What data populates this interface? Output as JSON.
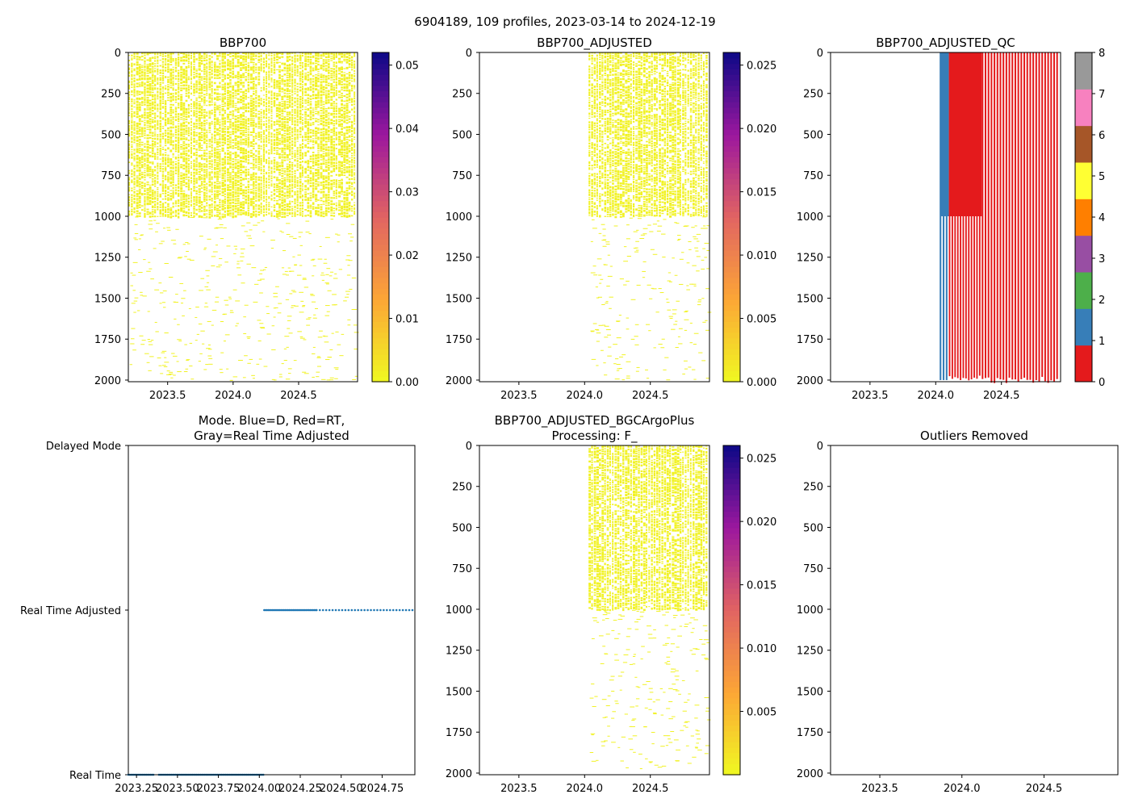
{
  "figure_title": "6904189, 109 profiles, 2023-03-14 to 2024-12-19",
  "chart_data": [
    {
      "id": "bbp700",
      "type": "heatmap",
      "title": "BBP700",
      "x_range": [
        2023.2,
        2024.95
      ],
      "y_range": [
        0,
        2010
      ],
      "y_inverted": true,
      "x_ticks": [
        2023.5,
        2024.0,
        2024.5
      ],
      "x_tick_labels": [
        "2023.5",
        "2024.0",
        "2024.5"
      ],
      "y_ticks": [
        0,
        250,
        500,
        750,
        1000,
        1250,
        1500,
        1750,
        2000
      ],
      "y_tick_labels": [
        "0",
        "250",
        "500",
        "750",
        "1000",
        "1250",
        "1500",
        "1750",
        "2000"
      ],
      "profile_time_range": [
        2023.2,
        2024.94
      ],
      "dense_depth_max": 1000,
      "sparse_depth_max": 2000,
      "value_range": [
        0.0,
        0.052
      ],
      "colormap": "plasma_r",
      "colorbar_ticks": [
        0.0,
        0.01,
        0.02,
        0.03,
        0.04,
        0.05
      ],
      "colorbar_labels": [
        "0.00",
        "0.01",
        "0.02",
        "0.03",
        "0.04",
        "0.05"
      ]
    },
    {
      "id": "bbp700_adjusted",
      "type": "heatmap",
      "title": "BBP700_ADJUSTED",
      "x_range": [
        2023.2,
        2024.95
      ],
      "y_range": [
        0,
        2010
      ],
      "y_inverted": true,
      "x_ticks": [
        2023.5,
        2024.0,
        2024.5
      ],
      "x_tick_labels": [
        "2023.5",
        "2024.0",
        "2024.5"
      ],
      "y_ticks": [
        0,
        250,
        500,
        750,
        1000,
        1250,
        1500,
        1750,
        2000
      ],
      "y_tick_labels": [
        "0",
        "250",
        "500",
        "750",
        "1000",
        "1250",
        "1500",
        "1750",
        "2000"
      ],
      "profile_time_range": [
        2024.03,
        2024.94
      ],
      "dense_depth_max": 1000,
      "sparse_depth_max": 2000,
      "value_range": [
        0.0,
        0.026
      ],
      "colormap": "plasma_r",
      "colorbar_ticks": [
        0.0,
        0.005,
        0.01,
        0.015,
        0.02,
        0.025
      ],
      "colorbar_labels": [
        "0.000",
        "0.005",
        "0.010",
        "0.015",
        "0.020",
        "0.025"
      ]
    },
    {
      "id": "bbp700_adjusted_qc",
      "type": "heatmap",
      "title": "BBP700_ADJUSTED_QC",
      "x_range": [
        2023.2,
        2024.95
      ],
      "y_range": [
        0,
        2010
      ],
      "y_inverted": true,
      "x_ticks": [
        2023.5,
        2024.0,
        2024.5
      ],
      "x_tick_labels": [
        "2023.5",
        "2024.0",
        "2024.5"
      ],
      "y_ticks": [
        0,
        250,
        500,
        750,
        1000,
        1250,
        1500,
        1750,
        2000
      ],
      "y_tick_labels": [
        "0",
        "250",
        "500",
        "750",
        "1000",
        "1250",
        "1500",
        "1750",
        "2000"
      ],
      "qc_blue_band": [
        2024.03,
        2024.1
      ],
      "qc_red_solid_band": [
        2024.1,
        2024.35
      ],
      "qc_red_striped_range": [
        2024.35,
        2024.94
      ],
      "qc_depth_full": 2000,
      "qc_depth_dense": 1000,
      "qc_stripe_count": 26,
      "value_range": [
        0,
        8
      ],
      "colorbar_ticks": [
        0,
        1,
        2,
        3,
        4,
        5,
        6,
        7,
        8
      ],
      "colorbar_labels": [
        "0",
        "1",
        "2",
        "3",
        "4",
        "5",
        "6",
        "7",
        "8"
      ],
      "qc_colors": [
        "#e41a1c",
        "#377eb8",
        "#4daf4a",
        "#984ea3",
        "#ff7f00",
        "#ffff33",
        "#a65628",
        "#f781bf",
        "#999999"
      ]
    },
    {
      "id": "mode",
      "type": "scatter",
      "title_line1": "Mode. Blue=D, Red=RT,",
      "title_line2": "Gray=Real Time Adjusted",
      "x_range": [
        2023.2,
        2024.95
      ],
      "y_categories": [
        "Real Time",
        "Real Time Adjusted",
        "Delayed Mode"
      ],
      "x_ticks": [
        2023.25,
        2023.5,
        2023.75,
        2024.0,
        2024.25,
        2024.5,
        2024.75
      ],
      "x_tick_labels": [
        "2023.25",
        "2023.50",
        "2023.75",
        "2024.00",
        "2024.25",
        "2024.50",
        "2024.75"
      ],
      "series": [
        {
          "name": "Real Time",
          "level": 0,
          "dense_range": [
            2023.2,
            2024.03
          ],
          "gap": [
            2023.36,
            2023.38
          ],
          "color": "#1f77b4"
        },
        {
          "name": "Real Time Adjusted",
          "level": 1,
          "dense_range": [
            2024.03,
            2024.35
          ],
          "sparse_range": [
            2024.35,
            2024.94
          ],
          "color": "#1f77b4"
        }
      ]
    },
    {
      "id": "bbp700_adjusted_bgcargoplus",
      "type": "heatmap",
      "title_line1": "BBP700_ADJUSTED_BGCArgoPlus",
      "title_line2": "Processing: F_",
      "x_range": [
        2023.2,
        2024.95
      ],
      "y_range": [
        0,
        2010
      ],
      "y_inverted": true,
      "x_ticks": [
        2023.5,
        2024.0,
        2024.5
      ],
      "x_tick_labels": [
        "2023.5",
        "2024.0",
        "2024.5"
      ],
      "y_ticks": [
        0,
        250,
        500,
        750,
        1000,
        1250,
        1500,
        1750,
        2000
      ],
      "y_tick_labels": [
        "0",
        "250",
        "500",
        "750",
        "1000",
        "1250",
        "1500",
        "1750",
        "2000"
      ],
      "profile_time_range": [
        2024.03,
        2024.94
      ],
      "dense_depth_max": 1000,
      "sparse_depth_max": 2000,
      "value_range": [
        0.0,
        0.026
      ],
      "colormap": "plasma_r",
      "colorbar_ticks": [
        0.005,
        0.01,
        0.015,
        0.02,
        0.025
      ],
      "colorbar_labels": [
        "0.005",
        "0.010",
        "0.015",
        "0.020",
        "0.025"
      ]
    },
    {
      "id": "outliers_removed",
      "type": "heatmap",
      "title": "Outliers Removed",
      "x_range": [
        2023.2,
        2024.95
      ],
      "y_range": [
        0,
        2010
      ],
      "y_inverted": true,
      "x_ticks": [
        2023.5,
        2024.0,
        2024.5
      ],
      "x_tick_labels": [
        "2023.5",
        "2024.0",
        "2024.5"
      ],
      "y_ticks": [
        0,
        250,
        500,
        750,
        1000,
        1250,
        1500,
        1750,
        2000
      ],
      "y_tick_labels": [
        "0",
        "250",
        "500",
        "750",
        "1000",
        "1250",
        "1500",
        "1750",
        "2000"
      ],
      "empty": true
    }
  ]
}
